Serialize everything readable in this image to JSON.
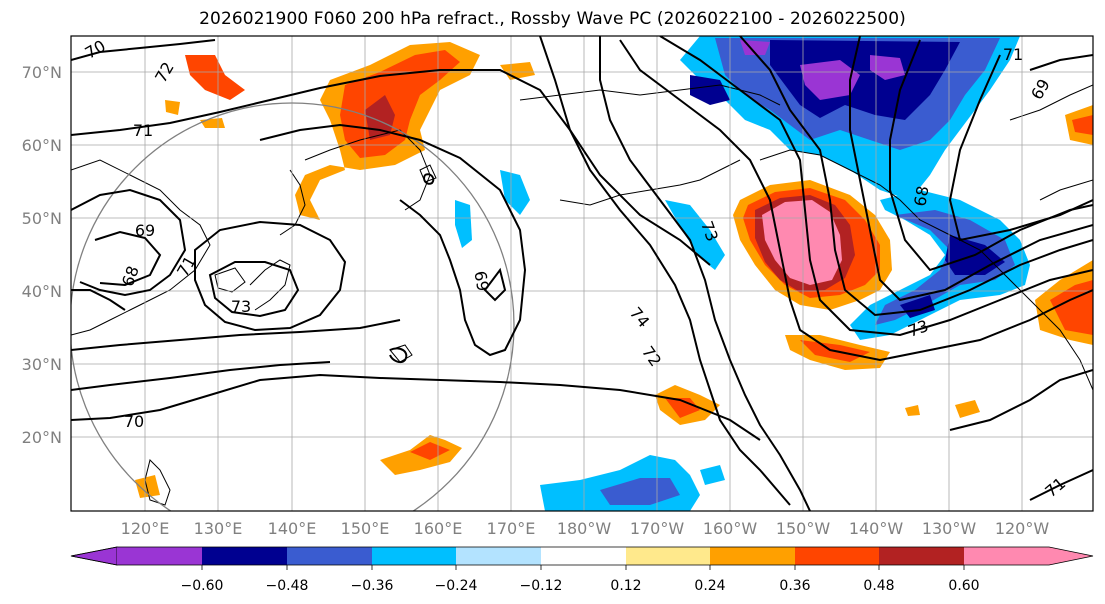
{
  "title": "2026021900 F060 200 hPa refract., Rossby Wave PC (2026022100 - 2026022500)",
  "lat_labels": [
    "70°N",
    "60°N",
    "50°N",
    "40°N",
    "30°N",
    "20°N"
  ],
  "lon_labels": [
    "120°E",
    "130°E",
    "140°E",
    "150°E",
    "160°E",
    "170°E",
    "180°W",
    "170°W",
    "160°W",
    "150°W",
    "140°W",
    "130°W",
    "120°W"
  ],
  "colorbar": {
    "colors": [
      "#9a35d4",
      "#000090",
      "#3a5cd0",
      "#00bfff",
      "#b3e3ff",
      "#ffffff",
      "#ffe98c",
      "#ffa000",
      "#ff4500",
      "#b22222",
      "#ff89b0"
    ],
    "tick_labels": [
      "−0.60",
      "−0.48",
      "−0.36",
      "−0.24",
      "−0.12",
      "0.12",
      "0.24",
      "0.36",
      "0.48",
      "0.60"
    ]
  },
  "contour_labels": [
    "72",
    "71",
    "69",
    "68",
    "71",
    "73",
    "70",
    "69",
    "74",
    "72",
    "73",
    "73",
    "68",
    "69",
    "71",
    "70",
    "71"
  ]
}
